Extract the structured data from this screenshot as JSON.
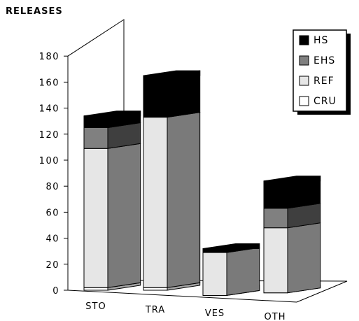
{
  "chart_data": {
    "type": "bar",
    "stacked": true,
    "three_d": true,
    "ylabel": "RELEASES",
    "xlabel": "",
    "title": "",
    "ylim": [
      0,
      180
    ],
    "yticks": [
      "0",
      "20",
      "40",
      "60",
      "80",
      "100",
      "120",
      "140",
      "160",
      "180"
    ],
    "categories": [
      "STO",
      "TRA",
      "VES",
      "OTH"
    ],
    "series": [
      {
        "name": "CRU",
        "values": [
          2,
          2,
          -4,
          -2
        ]
      },
      {
        "name": "REF",
        "values": [
          107,
          131,
          33,
          50
        ]
      },
      {
        "name": "EHS",
        "values": [
          16,
          0,
          0,
          15
        ]
      },
      {
        "name": "HS",
        "values": [
          9,
          32,
          3,
          21
        ]
      }
    ],
    "legend_position": "top-right",
    "grid": false,
    "colors": {
      "HS": "#000000",
      "EHS": "#808080",
      "REF": "#e6e6e6",
      "CRU": "#ffffff"
    }
  }
}
